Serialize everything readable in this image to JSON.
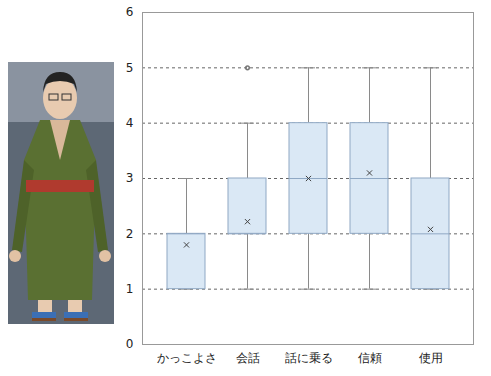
{
  "chart_data": {
    "type": "box",
    "categories": [
      "かっこよさ",
      "会話",
      "話に乗る",
      "信頼",
      "使用"
    ],
    "min": [
      1,
      1,
      1,
      1,
      1
    ],
    "q1": [
      1,
      2,
      2,
      2,
      1
    ],
    "median": [
      2,
      2,
      3,
      3,
      2
    ],
    "q3": [
      2,
      3,
      4,
      4,
      3
    ],
    "max": [
      3,
      4,
      5,
      5,
      5
    ],
    "mean": [
      1.8,
      2.22,
      3.0,
      3.1,
      2.08
    ],
    "outliers": [
      [],
      [
        5
      ],
      [],
      [],
      []
    ],
    "color": "#dae8f5",
    "ylim": [
      0,
      6
    ],
    "yticks": [
      0,
      1,
      2,
      3,
      4,
      5,
      6
    ],
    "grid": true
  }
}
